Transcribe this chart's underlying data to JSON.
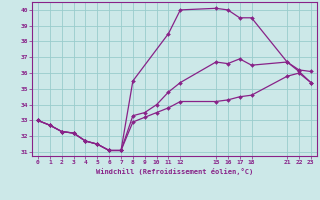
{
  "xlabel": "Windchill (Refroidissement éolien,°C)",
  "bg_color": "#cce8e8",
  "grid_color": "#99cccc",
  "line_color": "#882288",
  "spine_color": "#882288",
  "xlim": [
    -0.5,
    23.5
  ],
  "ylim": [
    30.75,
    40.5
  ],
  "xtick_positions": [
    0,
    1,
    2,
    3,
    4,
    5,
    6,
    7,
    8,
    9,
    10,
    11,
    12,
    15,
    16,
    17,
    18,
    21,
    22,
    23
  ],
  "xtick_labels": [
    "0",
    "1",
    "2",
    "3",
    "4",
    "5",
    "6",
    "7",
    "8",
    "9",
    "10",
    "11",
    "12",
    "15",
    "16",
    "17",
    "18",
    "21",
    "22",
    "23"
  ],
  "yticks": [
    31,
    32,
    33,
    34,
    35,
    36,
    37,
    38,
    39,
    40
  ],
  "series": [
    {
      "x": [
        0,
        1,
        2,
        3,
        4,
        5,
        6,
        7,
        8,
        11,
        12,
        15,
        16,
        17,
        18,
        21,
        22,
        23
      ],
      "y": [
        33.0,
        32.7,
        32.3,
        32.2,
        31.7,
        31.5,
        31.1,
        31.1,
        35.5,
        38.5,
        40.0,
        40.1,
        40.0,
        39.5,
        39.5,
        36.7,
        36.1,
        35.4
      ]
    },
    {
      "x": [
        0,
        1,
        2,
        3,
        4,
        5,
        6,
        7,
        8,
        9,
        10,
        11,
        12,
        15,
        16,
        17,
        18,
        21,
        22,
        23
      ],
      "y": [
        33.0,
        32.7,
        32.3,
        32.2,
        31.7,
        31.5,
        31.1,
        31.1,
        33.3,
        33.5,
        34.0,
        34.8,
        35.4,
        36.7,
        36.6,
        36.9,
        36.5,
        36.7,
        36.2,
        36.1
      ]
    },
    {
      "x": [
        0,
        1,
        2,
        3,
        4,
        5,
        6,
        7,
        8,
        9,
        10,
        11,
        12,
        15,
        16,
        17,
        18,
        21,
        22,
        23
      ],
      "y": [
        33.0,
        32.7,
        32.3,
        32.2,
        31.7,
        31.5,
        31.1,
        31.1,
        32.9,
        33.2,
        33.5,
        33.8,
        34.2,
        34.2,
        34.3,
        34.5,
        34.6,
        35.8,
        36.0,
        35.4
      ]
    }
  ]
}
